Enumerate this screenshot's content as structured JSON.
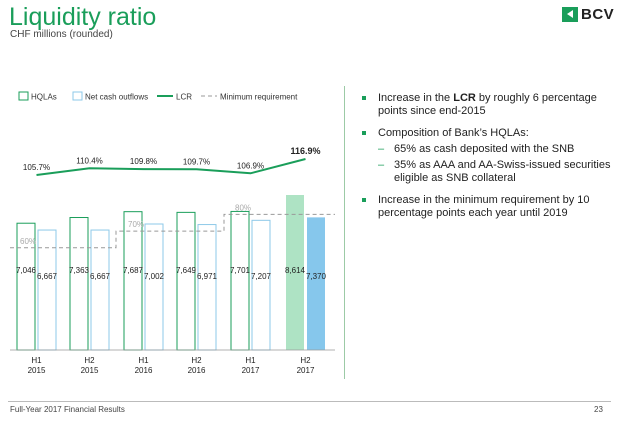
{
  "header": {
    "title": "Liquidity ratio",
    "subtitle": "CHF millions (rounded)",
    "logo_text": "BCV",
    "logo_color": "#1a9e5a"
  },
  "chart_data": {
    "type": "bar",
    "categories": [
      [
        "H1",
        "2015"
      ],
      [
        "H2",
        "2015"
      ],
      [
        "H1",
        "2016"
      ],
      [
        "H2",
        "2016"
      ],
      [
        "H1",
        "2017"
      ],
      [
        "H2",
        "2017"
      ]
    ],
    "legend": [
      "HQLAs",
      "Net cash outflows",
      "LCR",
      "Minimum requirement"
    ],
    "series": [
      {
        "name": "HQLAs",
        "values": [
          7046,
          7363,
          7687,
          7649,
          7701,
          8614
        ],
        "labels": [
          "7,046",
          "7,363",
          "7,687",
          "7,649",
          "7,701",
          "8,614"
        ],
        "color": "#1a9e5a",
        "highlight_fill": "#aee3c4"
      },
      {
        "name": "Net cash outflows",
        "values": [
          6667,
          6667,
          7002,
          6971,
          7207,
          7370
        ],
        "labels": [
          "6,667",
          "6,667",
          "7,002",
          "6,971",
          "7,207",
          "7,370"
        ],
        "color": "#8ec9e8",
        "highlight_fill": "#86c7ec"
      },
      {
        "name": "LCR",
        "values": [
          105.7,
          110.4,
          109.8,
          109.7,
          106.9,
          116.9
        ],
        "labels": [
          "105.7%",
          "110.4%",
          "109.8%",
          "109.7%",
          "106.9%",
          "116.9%"
        ],
        "color": "#1a9e5a"
      },
      {
        "name": "Minimum requirement",
        "values": [
          60,
          60,
          70,
          70,
          80,
          80
        ],
        "step_labels": [
          "60%",
          "70%",
          "80%"
        ],
        "color": "#999999"
      }
    ],
    "highlighted_category": 5
  },
  "bullets": [
    {
      "text_before": "Increase in the ",
      "bold": "LCR",
      "text_after": " by roughly 6 percentage points since end-2015"
    },
    {
      "text_before": "Composition of Bank’s HQLAs:",
      "bold": "",
      "text_after": "",
      "subs": [
        "65% as cash deposited with the SNB",
        "35% as AAA and AA-Swiss-issued securities eligible as SNB collateral"
      ]
    },
    {
      "text_before": "Increase in the minimum requirement by 10 percentage points each year until 2019",
      "bold": "",
      "text_after": ""
    }
  ],
  "footer": {
    "left": "Full-Year 2017 Financial Results",
    "page": "23"
  }
}
